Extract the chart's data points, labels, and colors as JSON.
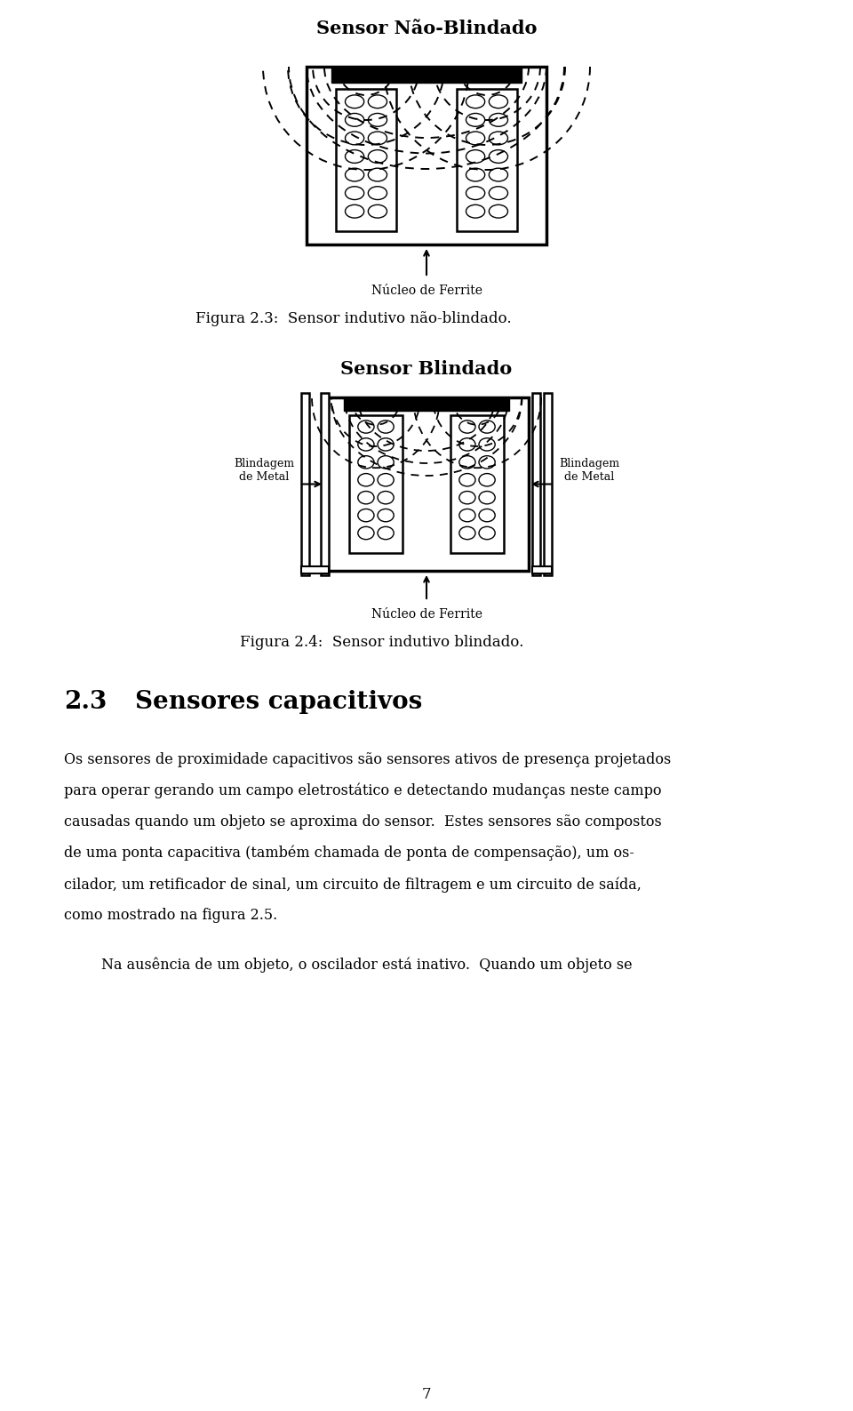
{
  "bg_color": "#ffffff",
  "page_width": 9.6,
  "page_height": 15.87,
  "fig1_title": "Sensor Não-Blindado",
  "fig1_caption": "Figura 2.3:  Sensor indutivo não-blindado.",
  "fig1_label": "Núcleo de Ferrite",
  "fig2_title": "Sensor Blindado",
  "fig2_caption": "Figura 2.4:  Sensor indutivo blindado.",
  "fig2_label": "Núcleo de Ferrite",
  "fig2_left_label": "Blindagem\nde Metal",
  "fig2_right_label": "Blindagem\nde Metal",
  "section_number": "2.3",
  "section_name": "Sensores capacitivos",
  "para1_lines": [
    "Os sensores de proximidade capacitivos são sensores ativos de presença projetados",
    "para operar gerando um campo eletrostático e detectando mudanças neste campo",
    "causadas quando um objeto se aproxima do sensor.  Estes sensores são compostos",
    "de uma ponta capacitiva (também chamada de ponta de compensação), um os-",
    "cilador, um retificador de sinal, um circuito de filtragem e um circuito de saída,",
    "como mostrado na figura 2.5."
  ],
  "para2": "Na ausência de um objeto, o oscilador está inativo.  Quando um objeto se",
  "page_number": "7"
}
